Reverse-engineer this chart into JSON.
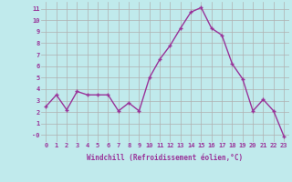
{
  "x": [
    0,
    1,
    2,
    3,
    4,
    5,
    6,
    7,
    8,
    9,
    10,
    11,
    12,
    13,
    14,
    15,
    16,
    17,
    18,
    19,
    20,
    21,
    22,
    23
  ],
  "y": [
    2.5,
    3.5,
    2.2,
    3.8,
    3.5,
    3.5,
    3.5,
    2.1,
    2.8,
    2.1,
    5.0,
    6.6,
    7.8,
    9.3,
    10.7,
    11.1,
    9.3,
    8.7,
    6.2,
    4.9,
    2.1,
    3.1,
    2.1,
    -0.1
  ],
  "line_color": "#993399",
  "marker": "+",
  "marker_size": 3.5,
  "bg_color": "#c0eaec",
  "grid_color": "#b0b0b0",
  "xlabel": "Windchill (Refroidissement éolien,°C)",
  "xlim": [
    -0.5,
    23.5
  ],
  "ylim": [
    -0.6,
    11.6
  ],
  "yticks": [
    0,
    1,
    2,
    3,
    4,
    5,
    6,
    7,
    8,
    9,
    10,
    11
  ],
  "ytick_labels": [
    "-0",
    "1",
    "2",
    "3",
    "4",
    "5",
    "6",
    "7",
    "8",
    "9",
    "10",
    "11"
  ],
  "xticks": [
    0,
    1,
    2,
    3,
    4,
    5,
    6,
    7,
    8,
    9,
    10,
    11,
    12,
    13,
    14,
    15,
    16,
    17,
    18,
    19,
    20,
    21,
    22,
    23
  ],
  "label_color": "#993399",
  "tick_color": "#993399",
  "linewidth": 1.0,
  "tick_fontsize": 5.0,
  "xlabel_fontsize": 5.5
}
